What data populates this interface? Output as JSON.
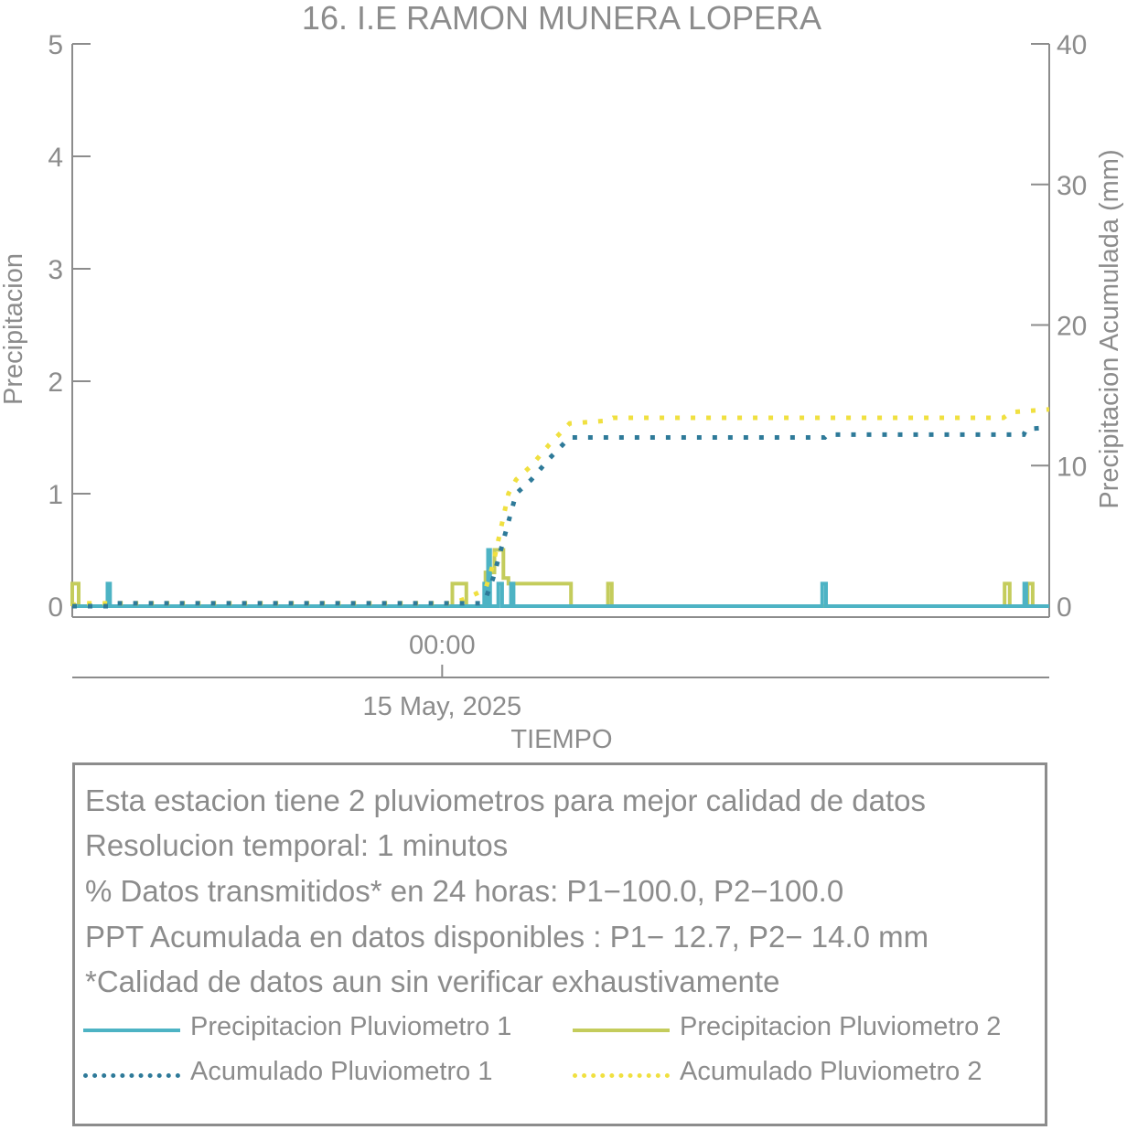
{
  "chart_data": {
    "type": "line",
    "title": "16. I.E RAMON MUNERA LOPERA",
    "xlabel": "TIEMPO",
    "ylabel": "Precipitacion",
    "y2label": "Precipitacion Acumulada (mm)",
    "ylim": [
      0,
      5
    ],
    "yticks": [
      0,
      1,
      2,
      3,
      4,
      5
    ],
    "y2lim": [
      0,
      40
    ],
    "y2ticks": [
      0,
      10,
      20,
      30,
      40
    ],
    "xlim": [
      -14.5,
      23.8
    ],
    "xtick": {
      "x": 0,
      "label": "00:00",
      "sublabel": "15 May, 2025"
    },
    "grid": false,
    "series": [
      {
        "name": "Precipitacion Pluviometro 1",
        "color": "#4db3c4",
        "style": "solid",
        "axis": "left",
        "points": [
          [
            -14.5,
            0
          ],
          [
            -13.12,
            0
          ],
          [
            -13.12,
            0.2
          ],
          [
            -13.02,
            0.2
          ],
          [
            -13.02,
            0
          ],
          [
            1.65,
            0
          ],
          [
            1.65,
            0.2
          ],
          [
            1.72,
            0.2
          ],
          [
            1.72,
            0
          ],
          [
            1.8,
            0
          ],
          [
            1.8,
            0.5
          ],
          [
            1.88,
            0.5
          ],
          [
            1.88,
            0
          ],
          [
            2.2,
            0
          ],
          [
            2.2,
            0.2
          ],
          [
            2.35,
            0.2
          ],
          [
            2.35,
            0
          ],
          [
            2.7,
            0
          ],
          [
            2.7,
            0.2
          ],
          [
            2.8,
            0.2
          ],
          [
            2.8,
            0
          ],
          [
            14.9,
            0
          ],
          [
            14.9,
            0.2
          ],
          [
            15.05,
            0.2
          ],
          [
            15.05,
            0
          ],
          [
            22.82,
            0
          ],
          [
            22.82,
            0.2
          ],
          [
            22.9,
            0.2
          ],
          [
            22.9,
            0
          ],
          [
            23.8,
            0
          ]
        ]
      },
      {
        "name": "Precipitacion Pluviometro 2",
        "color": "#c4cc5c",
        "style": "solid",
        "axis": "left",
        "points": [
          [
            -14.5,
            0
          ],
          [
            -14.5,
            0.2
          ],
          [
            -14.25,
            0.2
          ],
          [
            -14.25,
            0
          ],
          [
            0.4,
            0
          ],
          [
            0.4,
            0.2
          ],
          [
            0.95,
            0.2
          ],
          [
            0.95,
            0
          ],
          [
            1.7,
            0
          ],
          [
            1.7,
            0.3
          ],
          [
            2.05,
            0.3
          ],
          [
            2.05,
            0.5
          ],
          [
            2.4,
            0.5
          ],
          [
            2.4,
            0.25
          ],
          [
            2.6,
            0.25
          ],
          [
            2.6,
            0.2
          ],
          [
            5.05,
            0.2
          ],
          [
            5.05,
            0
          ],
          [
            6.5,
            0
          ],
          [
            6.5,
            0.2
          ],
          [
            6.65,
            0.2
          ],
          [
            6.65,
            0
          ],
          [
            22.05,
            0
          ],
          [
            22.05,
            0.2
          ],
          [
            22.25,
            0.2
          ],
          [
            22.25,
            0
          ],
          [
            22.95,
            0
          ],
          [
            22.95,
            0.2
          ],
          [
            23.15,
            0.2
          ],
          [
            23.15,
            0
          ],
          [
            23.8,
            0
          ]
        ]
      },
      {
        "name": "Acumulado Pluviometro 1",
        "color": "#2e7a99",
        "style": "dotted",
        "axis": "right",
        "points": [
          [
            -14.5,
            0
          ],
          [
            -13.1,
            0
          ],
          [
            -13.0,
            0.2
          ],
          [
            1.5,
            0.2
          ],
          [
            1.7,
            0.5
          ],
          [
            2.0,
            2.0
          ],
          [
            2.3,
            4.0
          ],
          [
            2.6,
            6.0
          ],
          [
            2.9,
            8.0
          ],
          [
            3.5,
            9.0
          ],
          [
            4.2,
            10.5
          ],
          [
            5.0,
            12.0
          ],
          [
            15.0,
            12.0
          ],
          [
            15.1,
            12.2
          ],
          [
            22.8,
            12.2
          ],
          [
            22.9,
            12.6
          ],
          [
            23.8,
            12.7
          ]
        ]
      },
      {
        "name": "Acumulado Pluviometro 2",
        "color": "#f0e040",
        "style": "dotted",
        "axis": "right",
        "points": [
          [
            -14.5,
            0
          ],
          [
            -14.3,
            0.2
          ],
          [
            0.4,
            0.2
          ],
          [
            1.0,
            0.6
          ],
          [
            1.7,
            1.2
          ],
          [
            2.0,
            3.0
          ],
          [
            2.3,
            5.5
          ],
          [
            2.6,
            8.0
          ],
          [
            2.9,
            9.0
          ],
          [
            3.5,
            10.0
          ],
          [
            4.2,
            11.5
          ],
          [
            5.0,
            13.0
          ],
          [
            6.5,
            13.2
          ],
          [
            6.7,
            13.4
          ],
          [
            22.0,
            13.4
          ],
          [
            22.3,
            13.8
          ],
          [
            23.8,
            14.0
          ]
        ]
      }
    ]
  },
  "info": {
    "lines": [
      "Esta estacion tiene 2 pluviometros para mejor calidad de datos",
      "Resolucion temporal: 1 minutos",
      "% Datos transmitidos* en 24 horas: P1−100.0, P2−100.0",
      "PPT Acumulada en datos disponibles : P1− 12.7, P2− 14.0 mm",
      "*Calidad de datos aun sin verificar exhaustivamente"
    ]
  },
  "legend": {
    "items": [
      {
        "label": "Precipitacion Pluviometro 1",
        "color": "#4db3c4",
        "style": "solid"
      },
      {
        "label": "Precipitacion Pluviometro 2",
        "color": "#c4cc5c",
        "style": "solid"
      },
      {
        "label": "Acumulado Pluviometro 1",
        "color": "#2e7a99",
        "style": "dotted"
      },
      {
        "label": "Acumulado Pluviometro 2",
        "color": "#f0e040",
        "style": "dotted"
      }
    ]
  }
}
